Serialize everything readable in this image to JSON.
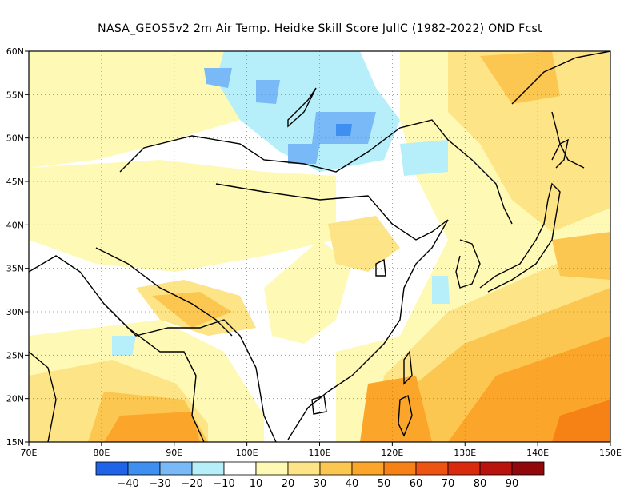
{
  "title": "NASA_GEOS5v2  2m Air Temp. Heidke Skill Score JulIC (1982-2022) OND Fcst",
  "map": {
    "lon_range": [
      70,
      150
    ],
    "lat_range": [
      15,
      60
    ],
    "lon_ticks": [
      "70E",
      "80E",
      "90E",
      "100E",
      "110E",
      "120E",
      "130E",
      "140E",
      "150E"
    ],
    "lat_ticks": [
      "15N",
      "20N",
      "25N",
      "30N",
      "35N",
      "40N",
      "45N",
      "50N",
      "55N",
      "60N"
    ],
    "grid": "dotted"
  },
  "colorbar": {
    "colors": [
      "#1f63e8",
      "#3f8ff0",
      "#7ab9f7",
      "#b6eef9",
      "#ffffff",
      "#fef9b4",
      "#fde486",
      "#fcc751",
      "#fba62a",
      "#f68114",
      "#ee5411",
      "#da2a0e",
      "#b8130d",
      "#90080a"
    ],
    "labels": [
      "−40",
      "−30",
      "−20",
      "−10",
      "10",
      "20",
      "30",
      "40",
      "50",
      "60",
      "70",
      "80",
      "90"
    ]
  }
}
